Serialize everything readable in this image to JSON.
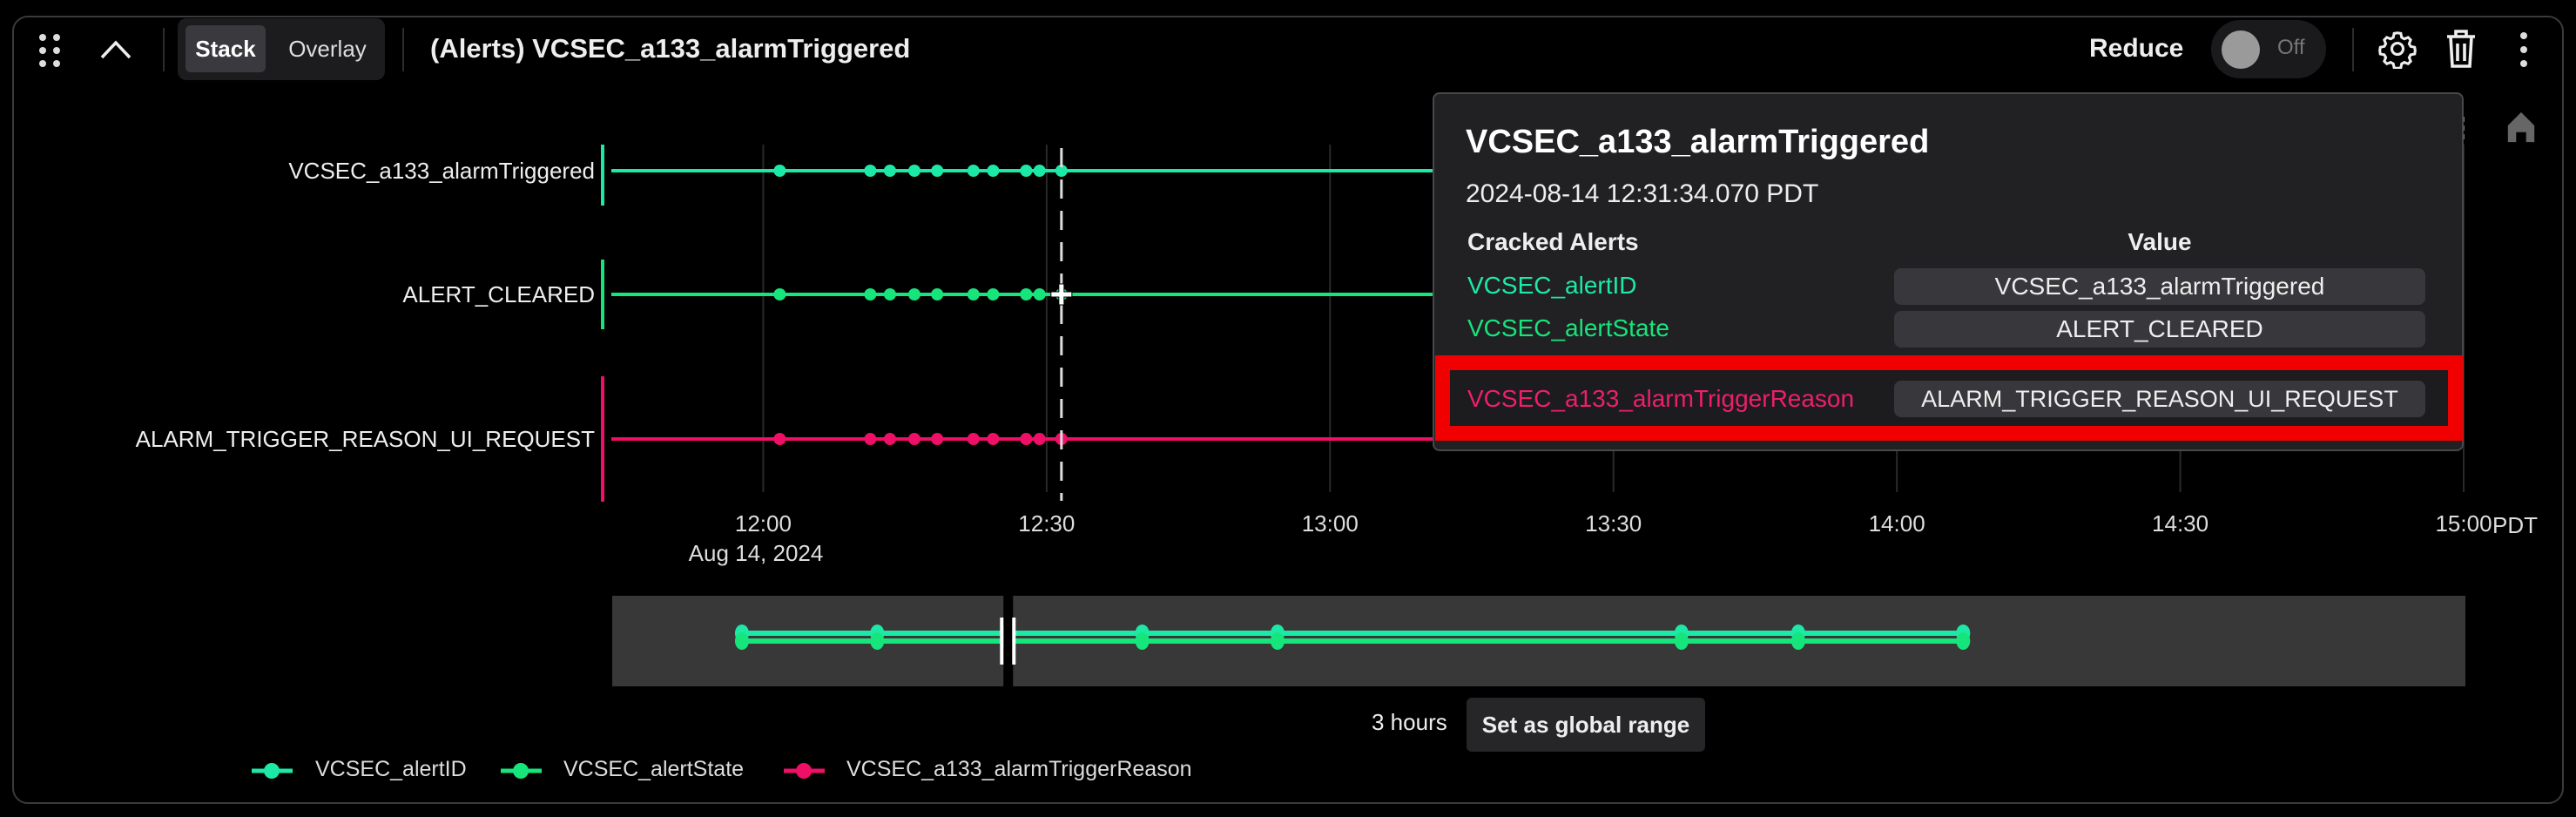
{
  "header": {
    "title": "(Alerts) VCSEC_a133_alarmTriggered",
    "view_modes": [
      "Stack",
      "Overlay"
    ],
    "active_view_mode": "Stack",
    "reduce_label": "Reduce",
    "reduce_toggle": "Off",
    "icons": [
      "drag-handle-icon",
      "chevron-up-icon",
      "gear-icon",
      "trash-icon",
      "kebab-menu-icon",
      "home-icon"
    ]
  },
  "colors": {
    "alertID": "#1de9a7",
    "alertState": "#16e57c",
    "triggerReason": "#ef0f67",
    "highlight": "#f00000"
  },
  "chart_data": {
    "type": "scatter",
    "x_axis": {
      "ticks": [
        "12:00",
        "12:30",
        "13:00",
        "13:30",
        "14:00",
        "14:30",
        "15:00"
      ],
      "date_label": "Aug 14, 2024",
      "timezone": "PDT",
      "range": [
        "11:43",
        "15:00"
      ]
    },
    "rows": [
      {
        "label": "VCSEC_a133_alarmTriggered",
        "series": "VCSEC_alertID",
        "color": "#1de9a7"
      },
      {
        "label": "ALERT_CLEARED",
        "series": "VCSEC_alertState",
        "color": "#16e57c"
      },
      {
        "label": "ALARM_TRIGGER_REASON_UI_REQUEST",
        "series": "VCSEC_a133_alarmTriggerReason",
        "color": "#ef0f67"
      }
    ],
    "event_times": [
      "12:01:45",
      "12:11:20",
      "12:13:25",
      "12:16:00",
      "12:18:25",
      "12:22:15",
      "12:24:20",
      "12:27:50",
      "12:29:15",
      "12:31:34"
    ],
    "cursor_time": "12:31:34",
    "overview_event_positions": [
      0.07,
      0.143,
      0.213,
      0.286,
      0.359,
      0.577,
      0.64,
      0.729
    ],
    "overview_selection": 0.213,
    "legend": [
      "VCSEC_alertID",
      "VCSEC_alertState",
      "VCSEC_a133_alarmTriggerReason"
    ],
    "grid": true
  },
  "tooltip": {
    "title": "VCSEC_a133_alarmTriggered",
    "timestamp": "2024-08-14 12:31:34.070 PDT",
    "col_name": "Cracked Alerts",
    "col_value": "Value",
    "rows": [
      {
        "name": "VCSEC_alertID",
        "value": "VCSEC_a133_alarmTriggered"
      },
      {
        "name": "VCSEC_alertState",
        "value": "ALERT_CLEARED"
      },
      {
        "name": "VCSEC_a133_alarmTriggerReason",
        "value": "ALARM_TRIGGER_REASON_UI_REQUEST"
      }
    ]
  },
  "footer": {
    "range_label": "3 hours",
    "global_range_button": "Set as global range"
  }
}
